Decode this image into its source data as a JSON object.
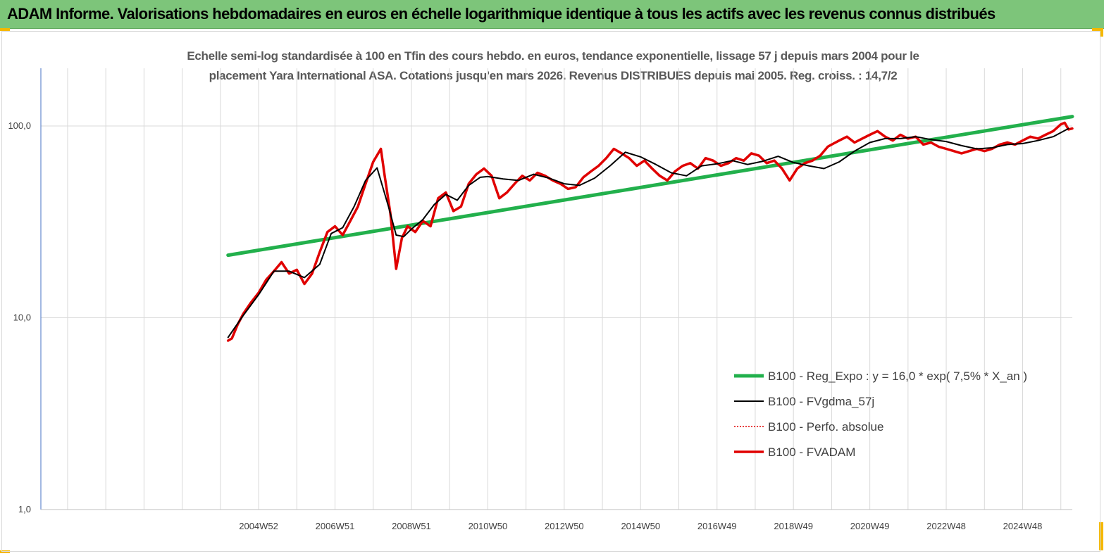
{
  "banner": {
    "title": "ADAM Informe. Valorisations hebdomadaires en euros en échelle logarithmique identique à tous les actifs avec les revenus connus distribués"
  },
  "colors": {
    "banner_bg": "#7dc57a",
    "corner": "#f5b800",
    "regression": "#22b04c",
    "smooth": "#000000",
    "perfo": "#e00000",
    "fvadam": "#e00000",
    "grid": "#d9d9d9"
  },
  "chart_data": {
    "type": "line",
    "title_lines": [
      "Echelle semi-log standardisée à 100 en Tfin des cours hebdo. en euros, tendance exponentielle, lissage 57 j depuis mars 2004 pour le",
      "placement Yara International ASA. Cotations jusqu'en mars 2026. Revenus DISTRIBUES depuis mai 2005. Reg. croiss. : 14,7/2"
    ],
    "y_scale": "log",
    "ylim": [
      1,
      200
    ],
    "y_ticks": [
      {
        "value": 1,
        "label": "1,0"
      },
      {
        "value": 10,
        "label": "10,0"
      },
      {
        "value": 100,
        "label": "100,0"
      }
    ],
    "xlim": [
      1999.3,
      2026.3
    ],
    "x_ticks": [
      {
        "value": 2005.0,
        "label": "2004W52"
      },
      {
        "value": 2007.0,
        "label": "2006W51"
      },
      {
        "value": 2009.0,
        "label": "2008W51"
      },
      {
        "value": 2011.0,
        "label": "2010W50"
      },
      {
        "value": 2013.0,
        "label": "2012W50"
      },
      {
        "value": 2015.0,
        "label": "2014W50"
      },
      {
        "value": 2017.0,
        "label": "2016W49"
      },
      {
        "value": 2019.0,
        "label": "2018W49"
      },
      {
        "value": 2021.0,
        "label": "2020W49"
      },
      {
        "value": 2023.0,
        "label": "2022W48"
      },
      {
        "value": 2025.0,
        "label": "2024W48"
      }
    ],
    "legend_position": "bottom-right",
    "series": [
      {
        "name": "B100 - Reg_Expo : y = 16,0 * exp( 7,5% * X_an )",
        "style": "regression",
        "x": [
          2004.2,
          2026.3
        ],
        "y": [
          21.2,
          112
        ]
      },
      {
        "name": "B100 - FVgdma_57j",
        "style": "smooth",
        "x": [
          2004.2,
          2004.6,
          2005.0,
          2005.4,
          2005.8,
          2006.2,
          2006.6,
          2006.9,
          2007.2,
          2007.5,
          2007.8,
          2008.1,
          2008.4,
          2008.6,
          2008.8,
          2009.0,
          2009.3,
          2009.6,
          2009.9,
          2010.2,
          2010.5,
          2010.8,
          2011.0,
          2011.4,
          2011.8,
          2012.2,
          2012.6,
          2013.0,
          2013.4,
          2013.8,
          2014.2,
          2014.6,
          2015.0,
          2015.4,
          2015.8,
          2016.2,
          2016.6,
          2017.0,
          2017.4,
          2017.8,
          2018.2,
          2018.6,
          2019.0,
          2019.4,
          2019.8,
          2020.2,
          2020.6,
          2021.0,
          2021.4,
          2021.8,
          2022.2,
          2022.6,
          2023.0,
          2023.4,
          2023.8,
          2024.2,
          2024.6,
          2025.0,
          2025.4,
          2025.8,
          2026.2
        ],
        "y": [
          7.9,
          10.3,
          13.2,
          17.5,
          17.5,
          16.2,
          19.0,
          27.5,
          29.5,
          38.0,
          52.0,
          60.5,
          38.0,
          27.0,
          26.5,
          29.0,
          32.5,
          39.0,
          44.0,
          41.0,
          49.0,
          54.0,
          54.5,
          53.0,
          52.0,
          56.0,
          53.5,
          50.0,
          49.0,
          53.5,
          62.0,
          73.0,
          69.0,
          63.0,
          57.0,
          55.0,
          62.0,
          63.5,
          66.0,
          63.0,
          65.5,
          69.5,
          64.5,
          62.0,
          60.0,
          65.0,
          74.0,
          82.0,
          86.0,
          86.0,
          88.0,
          85.0,
          83.0,
          79.0,
          76.0,
          77.0,
          80.0,
          81.0,
          84.0,
          88.0,
          97.0
        ]
      },
      {
        "name": "B100 - Perfo. absolue",
        "style": "perfo",
        "x": [],
        "y": []
      },
      {
        "name": "B100 - FVADAM",
        "style": "fvadam",
        "x": [
          2004.2,
          2004.3,
          2004.45,
          2004.6,
          2004.8,
          2005.0,
          2005.2,
          2005.4,
          2005.6,
          2005.8,
          2006.0,
          2006.2,
          2006.4,
          2006.6,
          2006.8,
          2007.0,
          2007.2,
          2007.4,
          2007.6,
          2007.8,
          2008.0,
          2008.2,
          2008.3,
          2008.45,
          2008.6,
          2008.75,
          2008.9,
          2009.1,
          2009.3,
          2009.5,
          2009.7,
          2009.9,
          2010.1,
          2010.3,
          2010.5,
          2010.7,
          2010.9,
          2011.1,
          2011.3,
          2011.5,
          2011.7,
          2011.9,
          2012.1,
          2012.3,
          2012.5,
          2012.7,
          2012.9,
          2013.1,
          2013.3,
          2013.5,
          2013.7,
          2013.9,
          2014.1,
          2014.3,
          2014.5,
          2014.7,
          2014.9,
          2015.1,
          2015.3,
          2015.5,
          2015.7,
          2015.9,
          2016.1,
          2016.3,
          2016.5,
          2016.7,
          2016.9,
          2017.1,
          2017.3,
          2017.5,
          2017.7,
          2017.9,
          2018.1,
          2018.3,
          2018.5,
          2018.7,
          2018.9,
          2019.1,
          2019.3,
          2019.5,
          2019.7,
          2019.9,
          2020.0,
          2020.2,
          2020.4,
          2020.6,
          2020.8,
          2021.0,
          2021.2,
          2021.4,
          2021.6,
          2021.8,
          2022.0,
          2022.2,
          2022.4,
          2022.6,
          2022.8,
          2023.0,
          2023.2,
          2023.4,
          2023.6,
          2023.8,
          2024.0,
          2024.2,
          2024.4,
          2024.6,
          2024.8,
          2025.0,
          2025.2,
          2025.4,
          2025.6,
          2025.8,
          2026.0,
          2026.1,
          2026.2,
          2026.3
        ],
        "y": [
          7.6,
          7.8,
          9.2,
          10.5,
          12.0,
          13.5,
          15.8,
          17.5,
          19.5,
          17.0,
          17.8,
          15.0,
          17.0,
          22.0,
          28.0,
          30.0,
          27.0,
          32.0,
          38.0,
          50.0,
          65.0,
          76.0,
          55.0,
          35.0,
          18.0,
          26.0,
          30.0,
          28.0,
          32.0,
          30.0,
          42.0,
          45.0,
          36.0,
          38.0,
          50.0,
          56.0,
          60.0,
          55.0,
          42.0,
          45.0,
          50.0,
          55.0,
          52.0,
          57.0,
          55.0,
          52.0,
          50.0,
          47.0,
          48.0,
          54.0,
          58.0,
          62.0,
          68.0,
          76.0,
          72.0,
          68.0,
          62.0,
          66.0,
          60.0,
          55.0,
          52.0,
          58.0,
          62.0,
          64.0,
          60.0,
          68.0,
          66.0,
          62.0,
          64.0,
          68.0,
          66.0,
          72.0,
          70.0,
          64.0,
          66.0,
          60.0,
          52.0,
          60.0,
          64.0,
          66.0,
          70.0,
          78.0,
          80.0,
          84.0,
          88.0,
          82.0,
          86.0,
          90.0,
          94.0,
          88.0,
          84.0,
          90.0,
          86.0,
          88.0,
          80.0,
          82.0,
          78.0,
          76.0,
          74.0,
          72.0,
          74.0,
          76.0,
          74.0,
          76.0,
          80.0,
          82.0,
          80.0,
          84.0,
          88.0,
          86.0,
          90.0,
          94.0,
          102.0,
          104.0,
          96.0,
          97.0
        ]
      }
    ]
  }
}
